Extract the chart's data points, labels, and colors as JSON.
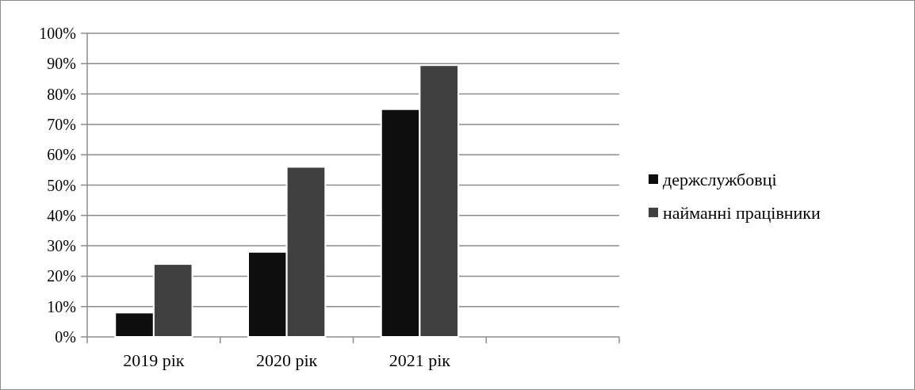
{
  "chart_data": {
    "type": "bar",
    "categories": [
      "2019 рік",
      "2020 рік",
      "2021 рік",
      null
    ],
    "series": [
      {
        "name": "держслужбовці",
        "color": "#0e0e0e",
        "values": [
          8,
          28,
          75,
          null
        ]
      },
      {
        "name": "найманні працівники",
        "color": "#404040",
        "values": [
          24,
          56,
          89.5,
          null
        ]
      }
    ],
    "ylim": [
      0,
      100
    ],
    "yticks": [
      {
        "value": 0,
        "label": "0%"
      },
      {
        "value": 10,
        "label": "10%"
      },
      {
        "value": 20,
        "label": "20%"
      },
      {
        "value": 30,
        "label": "30%"
      },
      {
        "value": 40,
        "label": "40%"
      },
      {
        "value": 50,
        "label": "50%"
      },
      {
        "value": 60,
        "label": "60%"
      },
      {
        "value": 70,
        "label": "70%"
      },
      {
        "value": 80,
        "label": "80%"
      },
      {
        "value": 90,
        "label": "90%"
      },
      {
        "value": 100,
        "label": "100%"
      }
    ],
    "grid": "y",
    "legend": "right"
  }
}
